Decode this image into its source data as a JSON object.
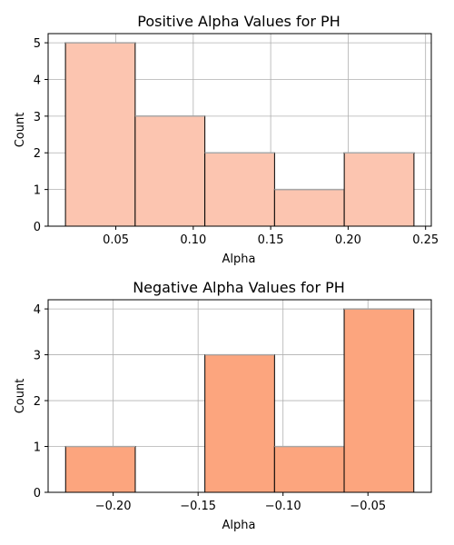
{
  "chart_data": [
    {
      "type": "bar",
      "title": "Positive Alpha Values for PH",
      "xlabel": "Alpha",
      "ylabel": "Count",
      "bins": [
        {
          "start": 0.0175,
          "end": 0.0625,
          "count": 5
        },
        {
          "start": 0.0625,
          "end": 0.1075,
          "count": 3
        },
        {
          "start": 0.1075,
          "end": 0.1525,
          "count": 2
        },
        {
          "start": 0.1525,
          "end": 0.1975,
          "count": 1
        },
        {
          "start": 0.1975,
          "end": 0.2425,
          "count": 2
        }
      ],
      "xlim": [
        0.0063,
        0.2537
      ],
      "ylim": [
        0,
        5.25
      ],
      "xticks": [
        0.05,
        0.1,
        0.15,
        0.2,
        0.25
      ],
      "xtick_labels": [
        "0.05",
        "0.10",
        "0.15",
        "0.20",
        "0.25"
      ],
      "yticks": [
        0,
        1,
        2,
        3,
        4,
        5
      ],
      "ytick_labels": [
        "0",
        "1",
        "2",
        "3",
        "4",
        "5"
      ],
      "bar_color": "#fcc5b0",
      "edge_color": "#000000",
      "grid": true
    },
    {
      "type": "bar",
      "title": "Negative Alpha Values for PH",
      "xlabel": "Alpha",
      "ylabel": "Count",
      "bins": [
        {
          "start": -0.228,
          "end": -0.187,
          "count": 1
        },
        {
          "start": -0.187,
          "end": -0.146,
          "count": 0
        },
        {
          "start": -0.146,
          "end": -0.105,
          "count": 3
        },
        {
          "start": -0.105,
          "end": -0.064,
          "count": 1
        },
        {
          "start": -0.064,
          "end": -0.023,
          "count": 4
        }
      ],
      "xlim": [
        -0.2383,
        -0.0127
      ],
      "ylim": [
        0,
        4.2
      ],
      "xticks": [
        -0.2,
        -0.15,
        -0.1,
        -0.05
      ],
      "xtick_labels": [
        "−0.20",
        "−0.15",
        "−0.10",
        "−0.05"
      ],
      "yticks": [
        0,
        1,
        2,
        3,
        4
      ],
      "ytick_labels": [
        "0",
        "1",
        "2",
        "3",
        "4"
      ],
      "bar_color": "#fca57e",
      "edge_color": "#000000",
      "grid": true
    }
  ]
}
